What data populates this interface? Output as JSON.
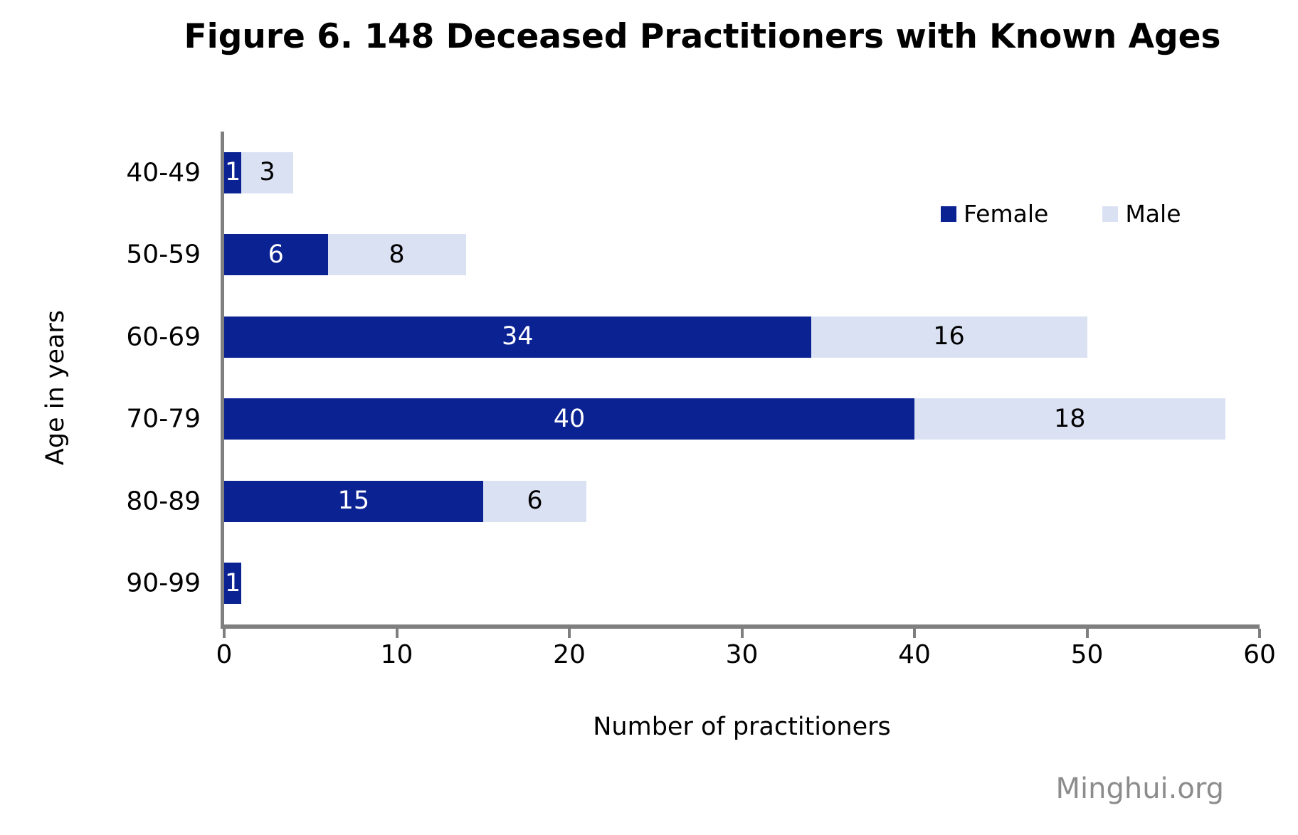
{
  "chart_data": {
    "type": "bar",
    "orientation": "horizontal",
    "stacked": true,
    "title": "Figure 6. 148 Deceased Practitioners with Known Ages",
    "categories": [
      "40-49",
      "50-59",
      "60-69",
      "70-79",
      "80-89",
      "90-99"
    ],
    "series": [
      {
        "name": "Female",
        "color": "#0b2292",
        "label_color": "#ffffff",
        "values": [
          1,
          6,
          34,
          40,
          15,
          1
        ]
      },
      {
        "name": "Male",
        "color": "#dae1f3",
        "label_color": "#000000",
        "values": [
          3,
          8,
          16,
          18,
          6,
          0
        ]
      }
    ],
    "totals": [
      4,
      14,
      50,
      58,
      21,
      1
    ],
    "xlabel": "Number of practitioners",
    "ylabel": "Age in years",
    "xlim": [
      0,
      60
    ],
    "xticks": [
      0,
      10,
      20,
      30,
      40,
      50,
      60
    ],
    "grid": false,
    "legend_position": "top-right",
    "axis_color": "#7f7f7f",
    "segment_labels_visible": true
  },
  "figure": {
    "watermark": "Minghui.org"
  }
}
